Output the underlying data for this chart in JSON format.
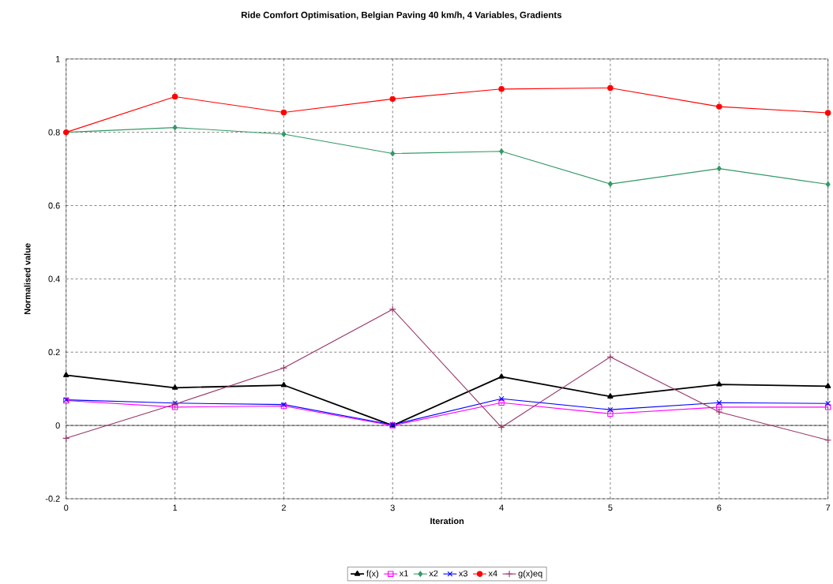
{
  "chart_data": {
    "type": "line",
    "title": "Ride Comfort Optimisation, Belgian Paving 40 km/h, 4 Variables, Gradients",
    "xlabel": "Iteration",
    "ylabel": "Normalised value",
    "x": [
      0,
      1,
      2,
      3,
      4,
      5,
      6,
      7
    ],
    "xlim": [
      0,
      7
    ],
    "xticks": [
      0,
      1,
      2,
      3,
      4,
      5,
      6,
      7
    ],
    "ylim": [
      -0.2,
      1
    ],
    "yticks": [
      -0.2,
      0,
      0.2,
      0.4,
      0.6,
      0.8,
      1
    ],
    "grid": true,
    "legend": "bottom",
    "line_style": "solid",
    "series": [
      {
        "name": "f(x)",
        "color": "#000000",
        "marker": "triangle",
        "values": [
          0.137,
          0.103,
          0.11,
          0.0,
          0.133,
          0.079,
          0.112,
          0.107
        ]
      },
      {
        "name": "x1",
        "color": "#ff00ff",
        "marker": "square",
        "values": [
          0.068,
          0.05,
          0.053,
          0.0,
          0.062,
          0.032,
          0.05,
          0.05
        ]
      },
      {
        "name": "x2",
        "color": "#339966",
        "marker": "diamond",
        "values": [
          0.8,
          0.813,
          0.795,
          0.742,
          0.748,
          0.659,
          0.701,
          0.658
        ]
      },
      {
        "name": "x3",
        "color": "#0000ff",
        "marker": "cross",
        "values": [
          0.07,
          0.061,
          0.057,
          0.002,
          0.073,
          0.043,
          0.062,
          0.06
        ]
      },
      {
        "name": "x4",
        "color": "#ff0000",
        "marker": "circle",
        "values": [
          0.8,
          0.897,
          0.854,
          0.891,
          0.918,
          0.921,
          0.87,
          0.853
        ]
      },
      {
        "name": "g(x)eq",
        "color": "#993366",
        "marker": "plus",
        "values": [
          -0.035,
          0.058,
          0.157,
          0.317,
          -0.005,
          0.187,
          0.037,
          -0.04
        ]
      }
    ]
  }
}
